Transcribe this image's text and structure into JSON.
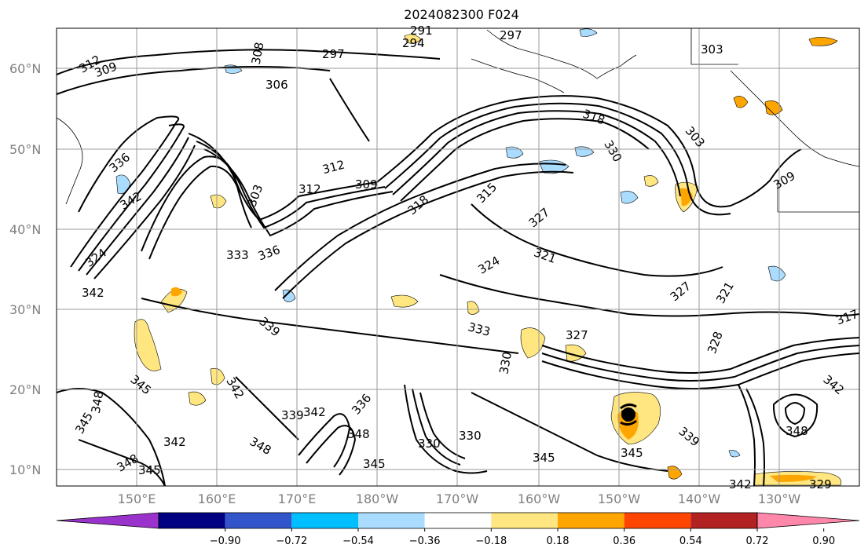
{
  "title": "2024082300 F024",
  "lat_labels": [
    "60°N",
    "50°N",
    "40°N",
    "30°N",
    "20°N",
    "10°N"
  ],
  "lon_labels": [
    "150°E",
    "160°E",
    "170°E",
    "180°W",
    "170°W",
    "160°W",
    "150°W",
    "140°W",
    "130°W"
  ],
  "colorbar": {
    "colors": [
      "#9933cc",
      "#000080",
      "#3355cc",
      "#00bfff",
      "#aadcff",
      "#ffffff",
      "#ffe680",
      "#ffa500",
      "#ff4500",
      "#b22222",
      "#ff88aa"
    ],
    "tick_labels": [
      "−0.90",
      "−0.72",
      "−0.54",
      "−0.36",
      "−0.18",
      "0.18",
      "0.36",
      "0.54",
      "0.72",
      "0.90"
    ]
  },
  "contour_labels": [
    "312",
    "309",
    "308",
    "306",
    "297",
    "294",
    "291",
    "297",
    "303",
    "318",
    "330",
    "303",
    "309",
    "312",
    "312",
    "309",
    "336",
    "342",
    "303",
    "333",
    "336",
    "318",
    "315",
    "324",
    "321",
    "327",
    "327",
    "321",
    "324",
    "342",
    "339",
    "333",
    "330",
    "327",
    "328",
    "317",
    "345",
    "342",
    "339",
    "336",
    "348",
    "345",
    "342",
    "348",
    "345",
    "348",
    "348",
    "342",
    "330",
    "345",
    "345",
    "339",
    "348",
    "345",
    "342",
    "329",
    "342",
    "330"
  ]
}
